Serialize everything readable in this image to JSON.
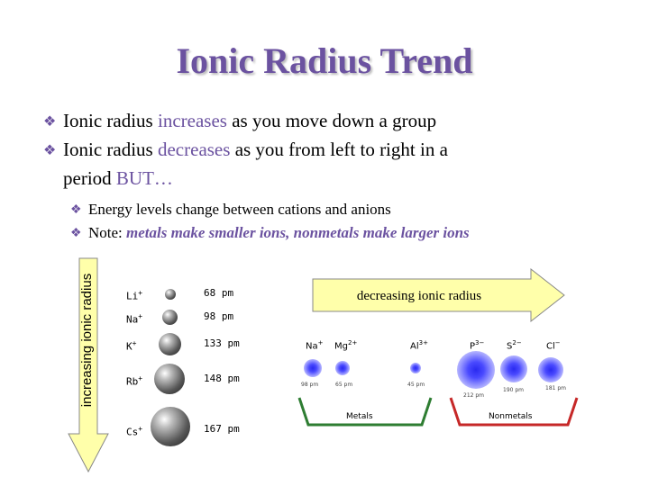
{
  "title": "Ionic Radius Trend",
  "colors": {
    "accent": "#6b52a0",
    "arrow_fill": "#ffffaa",
    "metals": "#2e7d32",
    "nonmetals": "#c62828",
    "ion_sphere": "#3b3bff"
  },
  "bullets": [
    {
      "prefix": "Ionic radius ",
      "highlight": "increases",
      "suffix": " as you move down a group"
    },
    {
      "prefix": "Ionic radius ",
      "highlight": "decreases",
      "suffix": " as you from left to right in a",
      "line2_prefix": "period ",
      "line2_highlight": "BUT…"
    }
  ],
  "sub_bullets": [
    {
      "text": "Energy levels change between cations and anions"
    },
    {
      "prefix": "Note: ",
      "emph": "metals make smaller ions, nonmetals make larger ions"
    }
  ],
  "vertical_arrow_label": "increasing ionic radius",
  "horizontal_arrow_label": "decreasing ionic radius",
  "ions_left": [
    {
      "symbol": "Li",
      "charge": "+",
      "value": "68 pm"
    },
    {
      "symbol": "Na",
      "charge": "+",
      "value": "98 pm"
    },
    {
      "symbol": "K",
      "charge": "+",
      "value": "133 pm"
    },
    {
      "symbol": "Rb",
      "charge": "+",
      "value": "148 pm"
    },
    {
      "symbol": "Cs",
      "charge": "+",
      "value": "167 pm"
    }
  ],
  "ions_right": [
    {
      "symbol": "Na",
      "charge": "+",
      "value": "98 pm"
    },
    {
      "symbol": "Mg",
      "charge": "2+",
      "value": "65 pm"
    },
    {
      "symbol": "Al",
      "charge": "3+",
      "value": "45 pm"
    },
    {
      "symbol": "P",
      "charge": "3−",
      "value": "212 pm"
    },
    {
      "symbol": "S",
      "charge": "2−",
      "value": "190 pm"
    },
    {
      "symbol": "Cl",
      "charge": "−",
      "value": "181 pm"
    }
  ],
  "group_labels": {
    "metals": "Metals",
    "nonmetals": "Nonmetals"
  }
}
